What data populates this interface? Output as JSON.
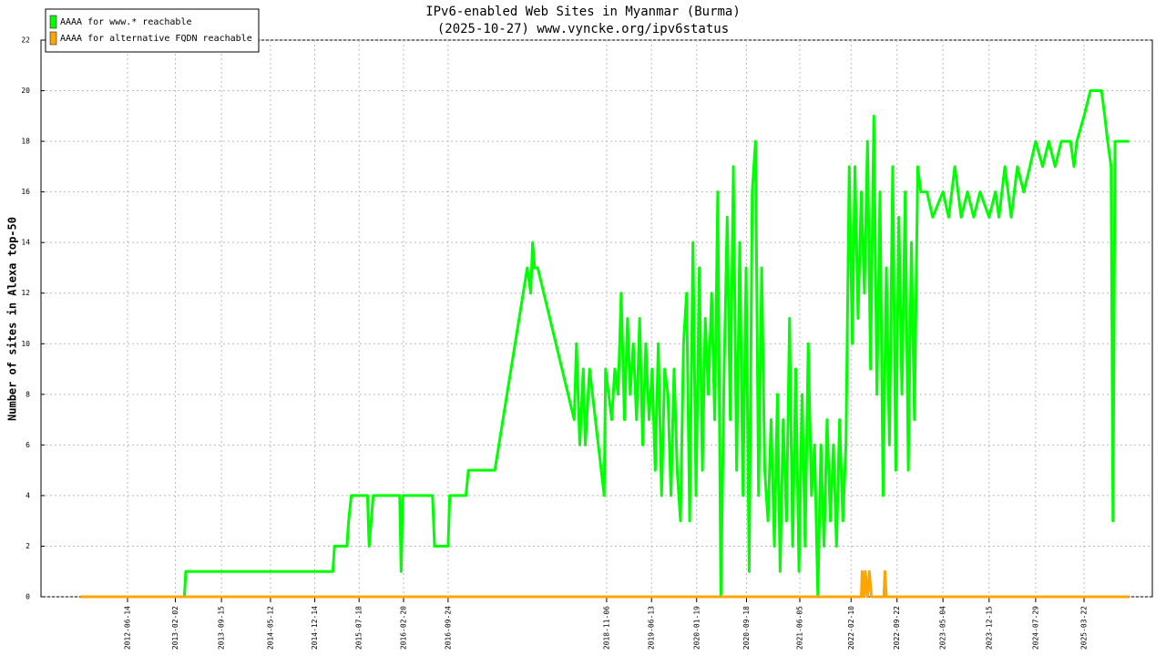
{
  "chart_data": {
    "type": "line",
    "title": "IPv6-enabled Web Sites in Myanmar (Burma)",
    "subtitle": "(2025-10-27) www.vyncke.org/ipv6status",
    "y_label": "Number of sites in Alexa top-50",
    "legend_position": "upper left",
    "grid": true,
    "xlim": [
      "2011-04-19",
      "2026-02-18"
    ],
    "xticks": [
      "2012-06-14",
      "2013-02-02",
      "2013-09-15",
      "2014-05-12",
      "2014-12-14",
      "2015-07-18",
      "2016-02-20",
      "2016-09-24",
      "2018-11-06",
      "2019-06-13",
      "2020-01-19",
      "2020-09-18",
      "2021-06-05",
      "2022-02-10",
      "2022-09-22",
      "2023-05-04",
      "2023-12-15",
      "2024-07-29",
      "2025-03-22"
    ],
    "ylim": [
      0,
      22
    ],
    "yticks": [
      0,
      2,
      4,
      6,
      8,
      10,
      12,
      14,
      16,
      18,
      20,
      22
    ],
    "series": [
      {
        "name": "AAAA for www.* reachable",
        "color": "#00ff00",
        "x": [
          "2011-10-29",
          "2013-03-18",
          "2013-03-25",
          "2015-03-12",
          "2015-03-20",
          "2015-05-20",
          "2015-05-28",
          "2015-06-10",
          "2015-08-28",
          "2015-09-05",
          "2015-09-25",
          "2016-02-01",
          "2016-02-08",
          "2016-02-16",
          "2016-07-10",
          "2016-07-20",
          "2016-09-24",
          "2016-10-02",
          "2016-12-20",
          "2017-01-01",
          "2017-05-10",
          "2017-10-15",
          "2017-11-01",
          "2017-11-10",
          "2017-11-20",
          "2017-12-05",
          "2018-06-01",
          "2018-06-12",
          "2018-06-28",
          "2018-07-15",
          "2018-07-25",
          "2018-08-15",
          "2018-10-25",
          "2018-11-01",
          "2018-11-16",
          "2018-12-01",
          "2018-12-16",
          "2019-01-01",
          "2019-01-16",
          "2019-02-01",
          "2019-02-16",
          "2019-03-01",
          "2019-03-16",
          "2019-04-01",
          "2019-04-16",
          "2019-05-01",
          "2019-05-16",
          "2019-06-01",
          "2019-06-16",
          "2019-07-01",
          "2019-07-16",
          "2019-08-01",
          "2019-08-16",
          "2019-09-01",
          "2019-09-16",
          "2019-10-01",
          "2019-10-16",
          "2019-11-01",
          "2019-11-16",
          "2019-12-01",
          "2019-12-16",
          "2020-01-01",
          "2020-01-16",
          "2020-02-01",
          "2020-02-16",
          "2020-03-01",
          "2020-03-16",
          "2020-04-01",
          "2020-04-16",
          "2020-05-01",
          "2020-05-16",
          "2020-06-01",
          "2020-06-16",
          "2020-07-01",
          "2020-07-16",
          "2020-08-01",
          "2020-08-16",
          "2020-09-01",
          "2020-09-16",
          "2020-10-01",
          "2020-10-16",
          "2020-11-01",
          "2020-11-16",
          "2020-12-01",
          "2020-12-16",
          "2021-01-01",
          "2021-01-16",
          "2021-02-01",
          "2021-02-16",
          "2021-03-01",
          "2021-03-16",
          "2021-04-01",
          "2021-04-16",
          "2021-05-01",
          "2021-05-16",
          "2021-06-01",
          "2021-06-16",
          "2021-07-01",
          "2021-07-16",
          "2021-08-01",
          "2021-08-16",
          "2021-09-01",
          "2021-09-16",
          "2021-10-01",
          "2021-10-16",
          "2021-11-01",
          "2021-11-16",
          "2021-12-01",
          "2021-12-16",
          "2022-01-01",
          "2022-01-16",
          "2022-02-01",
          "2022-02-16",
          "2022-03-01",
          "2022-03-16",
          "2022-04-01",
          "2022-04-16",
          "2022-05-01",
          "2022-05-16",
          "2022-06-01",
          "2022-06-16",
          "2022-07-01",
          "2022-07-16",
          "2022-08-01",
          "2022-08-16",
          "2022-09-01",
          "2022-09-16",
          "2022-10-01",
          "2022-10-16",
          "2022-11-01",
          "2022-11-16",
          "2022-12-01",
          "2022-12-16",
          "2023-01-01",
          "2023-01-16",
          "2023-02-15",
          "2023-03-15",
          "2023-05-04",
          "2023-06-01",
          "2023-07-01",
          "2023-08-01",
          "2023-09-01",
          "2023-10-01",
          "2023-11-01",
          "2023-12-15",
          "2024-01-15",
          "2024-02-01",
          "2024-03-01",
          "2024-04-01",
          "2024-05-01",
          "2024-06-01",
          "2024-07-01",
          "2024-07-29",
          "2024-09-01",
          "2024-10-01",
          "2024-11-01",
          "2024-12-01",
          "2025-01-15",
          "2025-02-01",
          "2025-02-15",
          "2025-03-22",
          "2025-04-22",
          "2025-06-15",
          "2025-07-01",
          "2025-07-15",
          "2025-08-01",
          "2025-08-10",
          "2025-08-20",
          "2025-10-27"
        ],
        "values": [
          0,
          0,
          1,
          1,
          2,
          2,
          3,
          4,
          4,
          2,
          4,
          4,
          1,
          4,
          4,
          2,
          2,
          4,
          4,
          5,
          5,
          13,
          12,
          14,
          13,
          13,
          7,
          10,
          6,
          9,
          6,
          9,
          4,
          9,
          8,
          7,
          9,
          8,
          12,
          7,
          11,
          8,
          10,
          7,
          11,
          6,
          10,
          7,
          9,
          5,
          10,
          4,
          9,
          8,
          4,
          9,
          5,
          3,
          10,
          12,
          3,
          14,
          4,
          13,
          5,
          11,
          8,
          12,
          7,
          16,
          0,
          9,
          15,
          7,
          17,
          5,
          14,
          4,
          13,
          1,
          16,
          18,
          4,
          13,
          5,
          3,
          7,
          2,
          8,
          1,
          7,
          3,
          11,
          2,
          9,
          1,
          8,
          2,
          10,
          4,
          6,
          0,
          6,
          2,
          7,
          3,
          6,
          2,
          7,
          3,
          6,
          17,
          10,
          17,
          11,
          16,
          12,
          18,
          9,
          19,
          8,
          16,
          4,
          13,
          6,
          17,
          5,
          15,
          8,
          16,
          5,
          14,
          7,
          17,
          16,
          16,
          15,
          16,
          15,
          17,
          15,
          16,
          15,
          16,
          15,
          16,
          15,
          17,
          15,
          17,
          16,
          17,
          18,
          17,
          18,
          17,
          18,
          18,
          17,
          18,
          19,
          20,
          20,
          19,
          18,
          17,
          3,
          18,
          18
        ]
      },
      {
        "name": "AAAA for alternative FQDN reachable",
        "color": "#ffa500",
        "x": [
          "2011-10-29",
          "2022-04-01",
          "2022-04-05",
          "2022-04-15",
          "2022-04-20",
          "2022-05-01",
          "2022-05-10",
          "2022-05-20",
          "2022-07-20",
          "2022-07-25",
          "2022-08-01",
          "2025-10-27"
        ],
        "values": [
          0,
          0,
          1,
          0,
          1,
          0,
          1,
          0,
          0,
          1,
          0,
          0
        ]
      }
    ]
  }
}
